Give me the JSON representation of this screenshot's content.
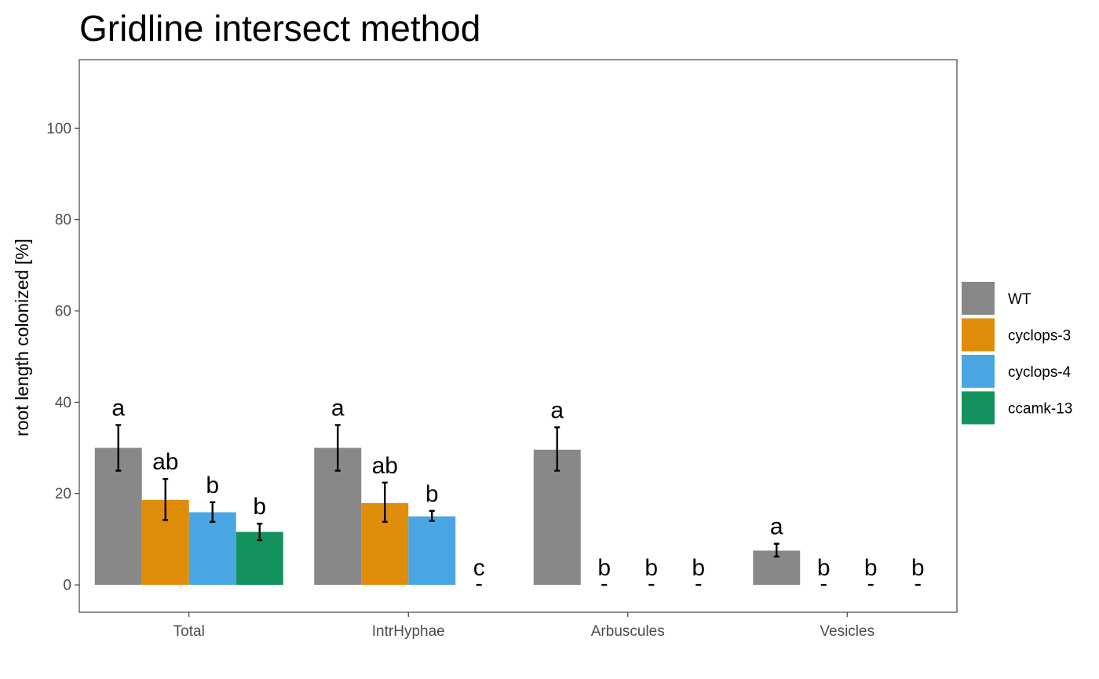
{
  "chart_data": {
    "type": "bar",
    "title": "Gridline intersect method",
    "xlabel": "",
    "ylabel": "root length colonized [%]",
    "ylim": [
      -6,
      115
    ],
    "yticks": [
      0,
      20,
      40,
      60,
      80,
      100
    ],
    "grid": false,
    "legend_position": "right",
    "categories": [
      "Total",
      "IntrHyphae",
      "Arbuscules",
      "Vesicles"
    ],
    "series": [
      {
        "name": "WT",
        "color": "#888888",
        "values": [
          30,
          30,
          29.6,
          7.5
        ],
        "error_low": [
          25,
          25,
          25,
          6.2
        ],
        "error_high": [
          35,
          35,
          34.5,
          9
        ],
        "sig_labels": [
          "a",
          "a",
          "a",
          "a"
        ]
      },
      {
        "name": "cyclops-3",
        "color": "#e08c0b",
        "values": [
          18.6,
          17.9,
          0,
          0
        ],
        "error_low": [
          14.2,
          13.8,
          0,
          0
        ],
        "error_high": [
          23.2,
          22.4,
          0,
          0
        ],
        "sig_labels": [
          "ab",
          "ab",
          "b",
          "b"
        ]
      },
      {
        "name": "cyclops-4",
        "color": "#4aa6e3",
        "values": [
          15.9,
          15,
          0,
          0
        ],
        "error_low": [
          13.8,
          14,
          0,
          0
        ],
        "error_high": [
          18.1,
          16.2,
          0,
          0
        ],
        "sig_labels": [
          "b",
          "b",
          "b",
          "b"
        ]
      },
      {
        "name": "ccamk-13",
        "color": "#14935f",
        "values": [
          11.6,
          0,
          0,
          0
        ],
        "error_low": [
          9.8,
          0,
          0,
          0
        ],
        "error_high": [
          13.4,
          0,
          0,
          0
        ],
        "sig_labels": [
          "b",
          "c",
          "b",
          "b"
        ]
      }
    ]
  }
}
